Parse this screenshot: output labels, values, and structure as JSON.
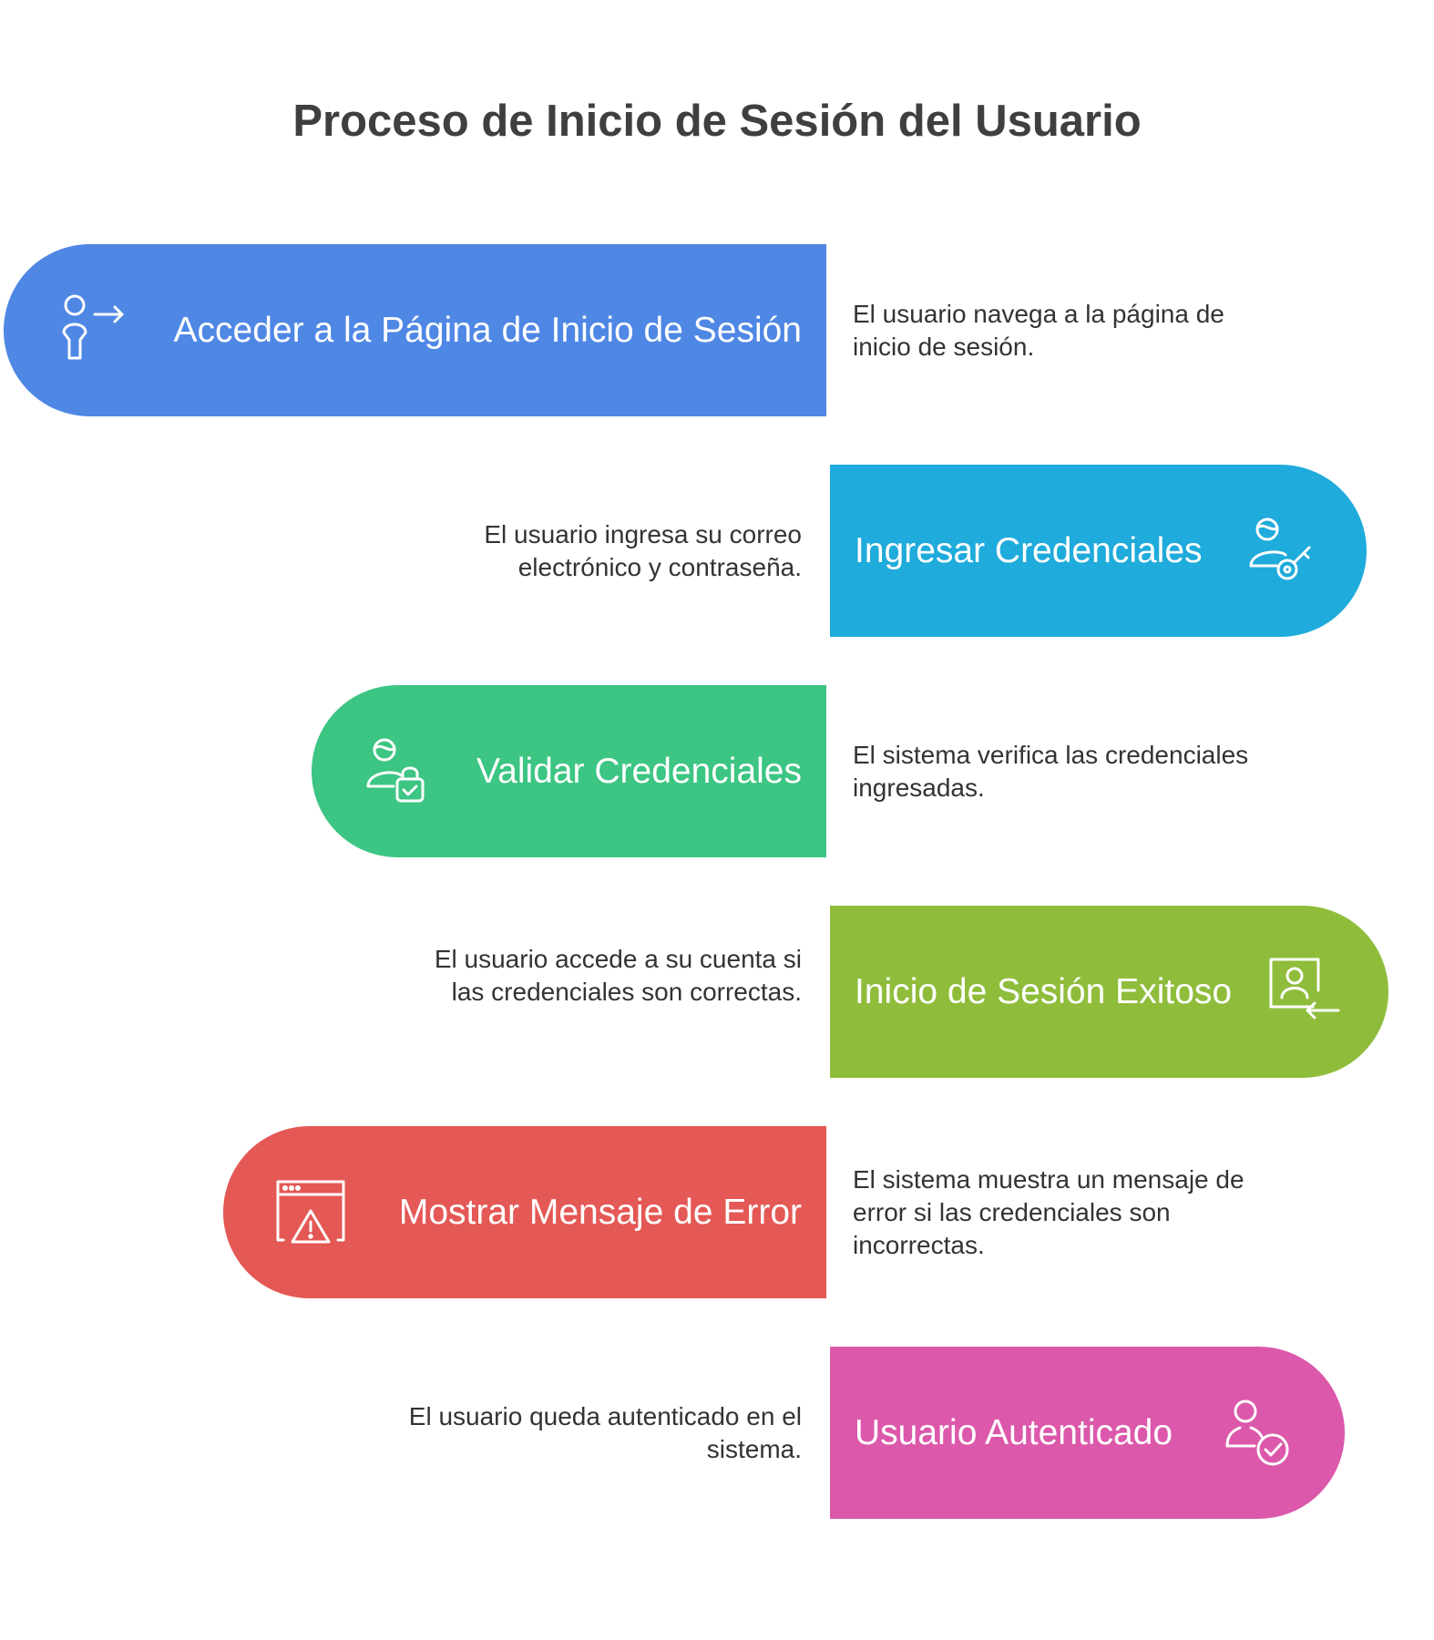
{
  "title": "Proceso de Inicio de Sesión del Usuario",
  "steps": [
    {
      "label": "Acceder a la Página de Inicio de Sesión",
      "description": "El usuario navega a la página de inicio de sesión.",
      "color": "#4f87e5",
      "icon": "user-arrow-right-icon"
    },
    {
      "label": "Ingresar Credenciales",
      "description": "El usuario ingresa su correo electrónico y contraseña.",
      "color": "#1fabdb",
      "icon": "user-key-icon"
    },
    {
      "label": "Validar Credenciales",
      "description": "El sistema verifica las credenciales ingresadas.",
      "color": "#3cc583",
      "icon": "user-lock-icon"
    },
    {
      "label": "Inicio de Sesión Exitoso",
      "description": "El usuario accede a su cuenta si las credenciales son correctas.",
      "color": "#8fbd3b",
      "icon": "user-login-icon"
    },
    {
      "label": "Mostrar Mensaje de Error",
      "description": "El sistema muestra un mensaje de error si las credenciales son incorrectas.",
      "color": "#e45855",
      "icon": "browser-warning-icon"
    },
    {
      "label": "Usuario Autenticado",
      "description": "El usuario queda autenticado en el sistema.",
      "color": "#dc58ab",
      "icon": "user-check-icon"
    }
  ]
}
